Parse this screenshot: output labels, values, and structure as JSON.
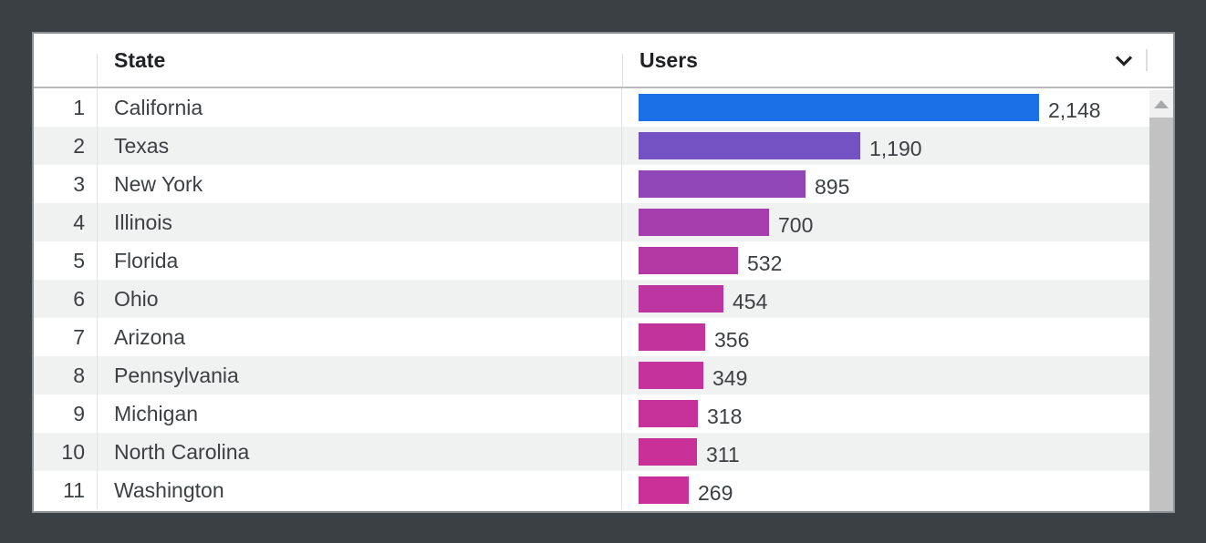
{
  "frame": {
    "background_color": "#3b4045",
    "card_border_color": "#8d9297"
  },
  "table": {
    "header": {
      "state_label": "State",
      "users_label": "Users",
      "sort_icon": "chevron-down"
    },
    "max_value": 2148,
    "rows": [
      {
        "rank": "1",
        "state": "California",
        "users": 2148,
        "users_label": "2,148",
        "bar_color": "#1b70e8"
      },
      {
        "rank": "2",
        "state": "Texas",
        "users": 1190,
        "users_label": "1,190",
        "bar_color": "#7452c4"
      },
      {
        "rank": "3",
        "state": "New York",
        "users": 895,
        "users_label": "895",
        "bar_color": "#9046b7"
      },
      {
        "rank": "4",
        "state": "Illinois",
        "users": 700,
        "users_label": "700",
        "bar_color": "#a53dac"
      },
      {
        "rank": "5",
        "state": "Florida",
        "users": 532,
        "users_label": "532",
        "bar_color": "#b438a4"
      },
      {
        "rank": "6",
        "state": "Ohio",
        "users": 454,
        "users_label": "454",
        "bar_color": "#bc35a0"
      },
      {
        "rank": "7",
        "state": "Arizona",
        "users": 356,
        "users_label": "356",
        "bar_color": "#c2339c"
      },
      {
        "rank": "8",
        "state": "Pennsylvania",
        "users": 349,
        "users_label": "349",
        "bar_color": "#c5329b"
      },
      {
        "rank": "9",
        "state": "Michigan",
        "users": 318,
        "users_label": "318",
        "bar_color": "#c7319a"
      },
      {
        "rank": "10",
        "state": "North Carolina",
        "users": 311,
        "users_label": "311",
        "bar_color": "#c93199"
      },
      {
        "rank": "11",
        "state": "Washington",
        "users": 269,
        "users_label": "269",
        "bar_color": "#cb3098"
      }
    ]
  },
  "scrollbar": {
    "up_icon": "triangle-up",
    "track_color": "#f1f1f1",
    "thumb_color": "#c2c2c2"
  },
  "chart_data": {
    "type": "bar",
    "orientation": "horizontal",
    "categories": [
      "California",
      "Texas",
      "New York",
      "Illinois",
      "Florida",
      "Ohio",
      "Arizona",
      "Pennsylvania",
      "Michigan",
      "North Carolina",
      "Washington"
    ],
    "values": [
      2148,
      1190,
      895,
      700,
      532,
      454,
      356,
      349,
      318,
      311,
      269
    ],
    "title": "",
    "xlabel": "Users",
    "ylabel": "State",
    "xlim": [
      0,
      2148
    ],
    "grid": false,
    "legend": false
  }
}
